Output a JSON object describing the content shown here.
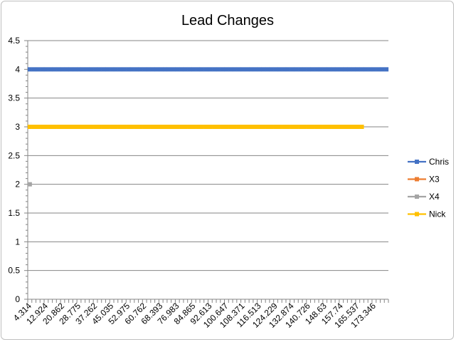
{
  "chart_data": {
    "type": "line",
    "title": "Lead Changes",
    "xlabel": "",
    "ylabel": "",
    "ylim": [
      0,
      4.5
    ],
    "y_ticks": [
      "0",
      "0.5",
      "1",
      "1.5",
      "2",
      "2.5",
      "3",
      "3.5",
      "4",
      "4.5"
    ],
    "grid": "horizontal",
    "legend_position": "right",
    "x_ticks": [
      "4.314",
      "12.924",
      "20.862",
      "28.775",
      "37.262",
      "45.035",
      "52.975",
      "60.762",
      "68.393",
      "76.983",
      "84.865",
      "92.613",
      "100.647",
      "108.371",
      "116.513",
      "124.229",
      "132.874",
      "140.726",
      "148.63",
      "157.74",
      "165.537",
      "173.346"
    ],
    "x_category_count": 88,
    "series": [
      {
        "name": "Chris",
        "color": "#4472c4",
        "value": 4,
        "start_index": 0,
        "end_index": 87
      },
      {
        "name": "X3",
        "color": "#ed7d31",
        "value": null,
        "start_index": null,
        "end_index": null
      },
      {
        "name": "X4",
        "color": "#a5a5a5",
        "value": 2,
        "start_index": 0,
        "end_index": 0
      },
      {
        "name": "Nick",
        "color": "#ffc000",
        "value": 3,
        "start_index": 0,
        "end_index": 81
      }
    ]
  }
}
